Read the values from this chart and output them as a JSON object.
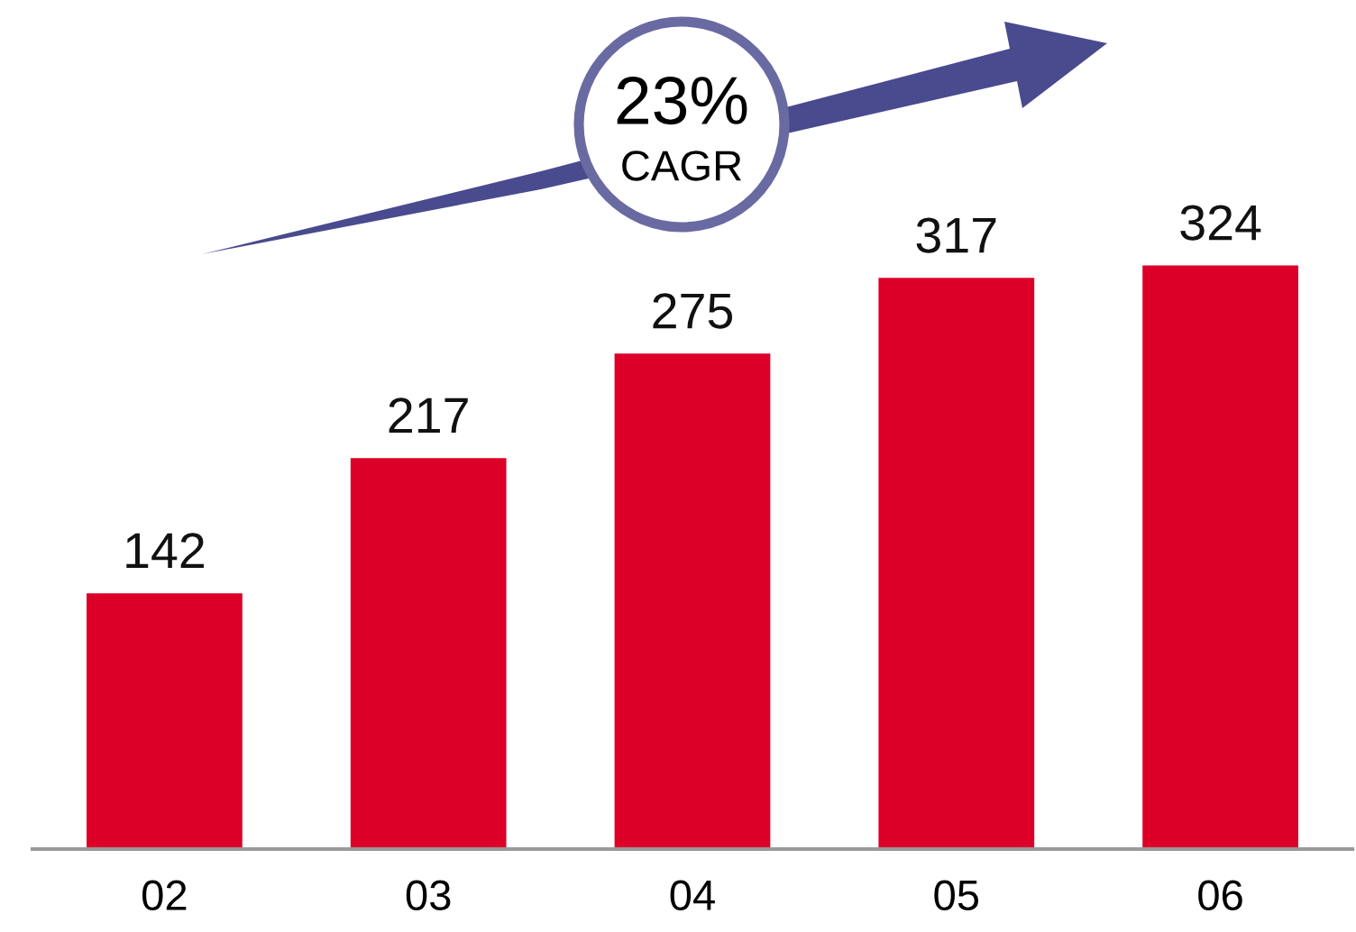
{
  "chart_data": {
    "type": "bar",
    "categories": [
      "02",
      "03",
      "04",
      "05",
      "06"
    ],
    "values": [
      142,
      217,
      275,
      317,
      324
    ],
    "color": "#dc0028",
    "data_labels": true,
    "tick_labels": "x",
    "grid": false,
    "legend": false,
    "annotations": [
      "23%",
      "CAGR"
    ]
  }
}
